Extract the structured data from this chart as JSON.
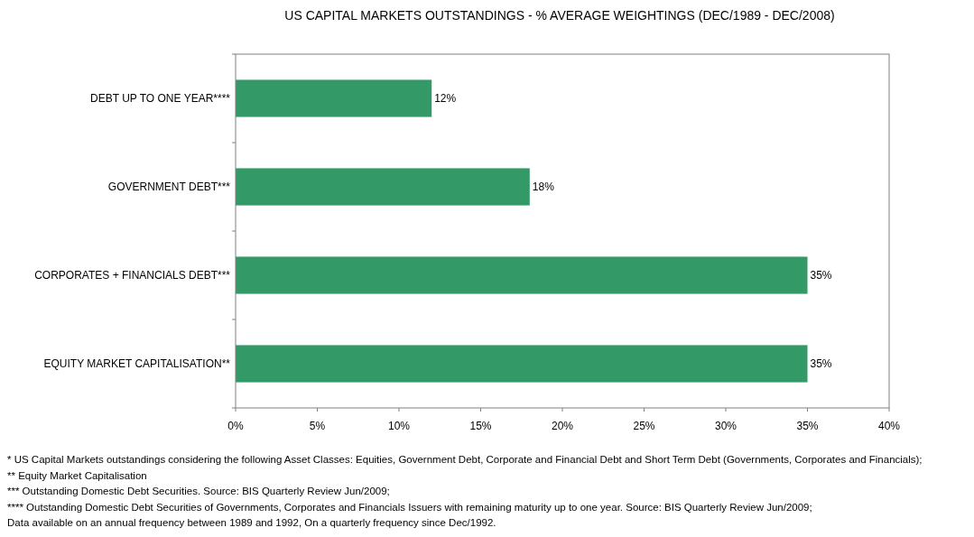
{
  "chart_data": {
    "type": "bar",
    "orientation": "horizontal",
    "title": "US CAPITAL MARKETS OUTSTANDINGS - % AVERAGE WEIGHTINGS (DEC/1989 - DEC/2008)",
    "categories": [
      "DEBT UP TO ONE YEAR****",
      "GOVERNMENT DEBT***",
      "CORPORATES + FINANCIALS DEBT***",
      "EQUITY MARKET CAPITALISATION**"
    ],
    "values": [
      12,
      18,
      35,
      35
    ],
    "color": "#339966",
    "value_labels": [
      "12%",
      "18%",
      "35%",
      "35%"
    ],
    "xlim": [
      0,
      40
    ],
    "xticks": [
      {
        "value": 0,
        "label": "0%"
      },
      {
        "value": 5,
        "label": "5%"
      },
      {
        "value": 10,
        "label": "10%"
      },
      {
        "value": 15,
        "label": "15%"
      },
      {
        "value": 20,
        "label": "20%"
      },
      {
        "value": 25,
        "label": "25%"
      },
      {
        "value": 30,
        "label": "30%"
      },
      {
        "value": 35,
        "label": "35%"
      },
      {
        "value": 40,
        "label": "40%"
      }
    ],
    "grid": false,
    "annotations": [
      "* US Capital Markets outstandings considering the following Asset Classes: Equities, Government Debt, Corporate and Financial Debt and Short Term Debt (Governments, Corporates and Financials);",
      "** Equity Market Capitalisation",
      "*** Outstanding Domestic Debt Securities. Source: BIS Quarterly Review Jun/2009;",
      "**** Outstanding Domestic Debt Securities of Governments, Corporates and Financials Issuers with remaining maturity up to one year. Source: BIS Quarterly Review Jun/2009;",
      "Data available on an annual frequency between 1989 and 1992, On a quarterly frequency since Dec/1992."
    ]
  }
}
